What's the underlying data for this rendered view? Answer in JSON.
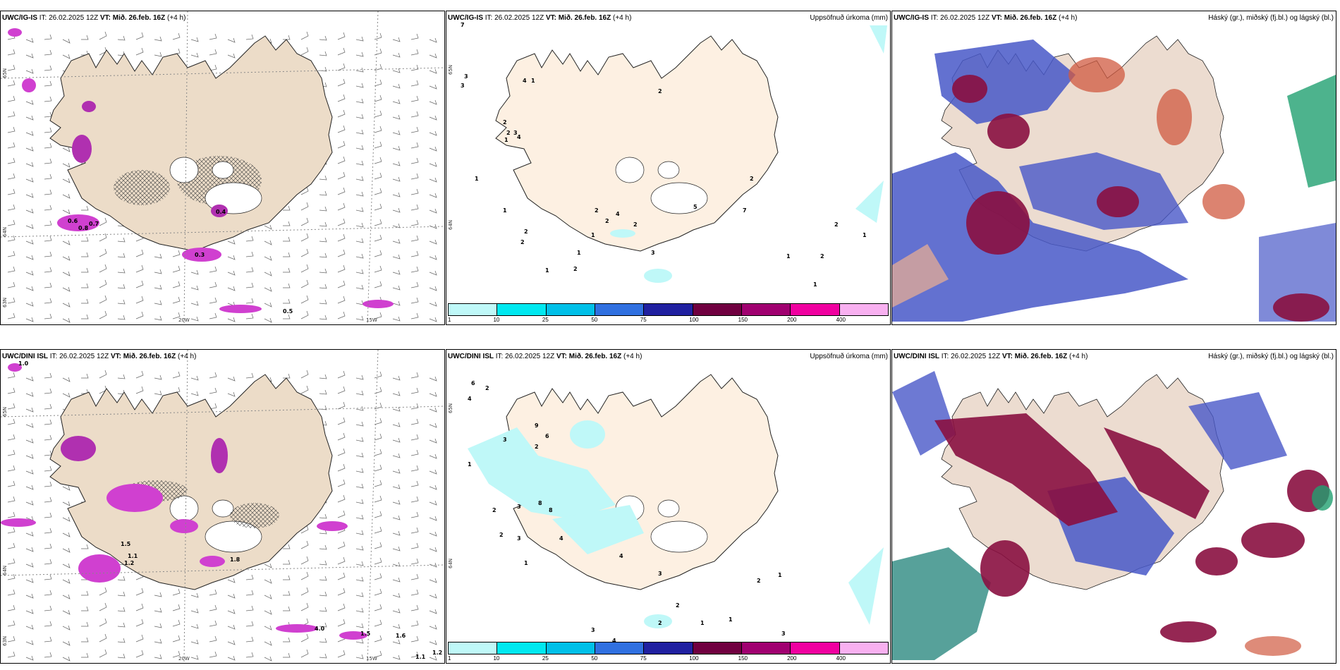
{
  "panels": {
    "ig_wind": {
      "model": "UWC/IG-IS",
      "it": "IT: 26.02.2025 12Z",
      "vt_label": "VT:",
      "vt_value": "Mið. 26.feb. 16Z",
      "lead": "(+4 h)",
      "lat_labels": [
        "65N",
        "64N",
        "63N"
      ],
      "lon_labels": [
        "20W",
        "15W"
      ],
      "value_label": "0.5"
    },
    "ig_precip": {
      "model": "UWC/IG-IS",
      "it": "IT: 26.02.2025 12Z",
      "vt_label": "VT:",
      "vt_value": "Mið. 26.feb. 16Z",
      "lead": "(+4 h)",
      "field_title": "Uppsöfnuð úrkoma (mm)",
      "lat_labels": [
        "65N",
        "64N"
      ]
    },
    "ig_cloud": {
      "model": "UWC/IG-IS",
      "it": "IT: 26.02.2025 12Z",
      "vt_label": "VT:",
      "vt_value": "Mið. 26.feb. 16Z",
      "lead": "(+4 h)",
      "field_title": "Háský (gr.), miðský (fj.bl.) og lágský (bl.)"
    },
    "dini_wind": {
      "model": "UWC/DINI ISL",
      "it": "IT: 26.02.2025 12Z",
      "vt_label": "VT:",
      "vt_value": "Mið. 26.feb. 16Z",
      "lead": "(+4 h)",
      "lat_labels": [
        "65N",
        "64N",
        "63N"
      ],
      "lon_labels": [
        "20W",
        "15W"
      ]
    },
    "dini_precip": {
      "model": "UWC/DINI ISL",
      "it": "IT: 26.02.2025 12Z",
      "vt_label": "VT:",
      "vt_value": "Mið. 26.feb. 16Z",
      "lead": "(+4 h)",
      "field_title": "Uppsöfnuð úrkoma (mm)",
      "lat_labels": [
        "65N",
        "64N"
      ]
    },
    "dini_cloud": {
      "model": "UWC/DINI ISL",
      "it": "IT: 26.02.2025 12Z",
      "vt_label": "VT:",
      "vt_value": "Mið. 26.feb. 16Z",
      "lead": "(+4 h)",
      "field_title": "Háský (gr.), miðský (fj.bl.) og lágský (bl.)"
    }
  },
  "colorbar": {
    "ticks": [
      "1",
      "10",
      "25",
      "50",
      "75",
      "100",
      "150",
      "200",
      "400"
    ],
    "colors": [
      "#bff8f8",
      "#00e8f0",
      "#00c0e8",
      "#3070e0",
      "#2020a0",
      "#700040",
      "#a00070",
      "#f000a0",
      "#f8b0f0"
    ]
  },
  "precip_values": {
    "ig": [
      "7",
      "3",
      "3",
      "4",
      "1",
      "2",
      "2",
      "2",
      "3",
      "1",
      "4",
      "1",
      "1",
      "2",
      "2",
      "1",
      "2",
      "1",
      "1",
      "4",
      "2",
      "2",
      "2",
      "3",
      "5",
      "7",
      "2",
      "1",
      "1",
      "2",
      "1",
      "2"
    ],
    "dini": [
      "6",
      "2",
      "4",
      "1",
      "9",
      "6",
      "3",
      "2",
      "2",
      "8",
      "3",
      "8",
      "3",
      "4",
      "2",
      "1",
      "3",
      "1",
      "1",
      "2",
      "3",
      "4",
      "4",
      "2",
      "2",
      "1",
      "3"
    ]
  },
  "wind_values": {
    "ig": [
      "0.6",
      "0.8",
      "0.7",
      "0.4",
      "0.3"
    ],
    "dini": [
      "1.0",
      "1.5",
      "1.1",
      "1.2",
      "1.8",
      "4.0",
      "1.5",
      "1.6",
      "1.2",
      "1.1"
    ]
  },
  "colors": {
    "land": "#f8ebdc",
    "land_fill_wind": "#ecdcc8",
    "outline": "#222222",
    "magenta": "#d040d0",
    "highcloud": "#a01838",
    "midcloud": "#3848c8",
    "lowcloud": "#20a070"
  }
}
